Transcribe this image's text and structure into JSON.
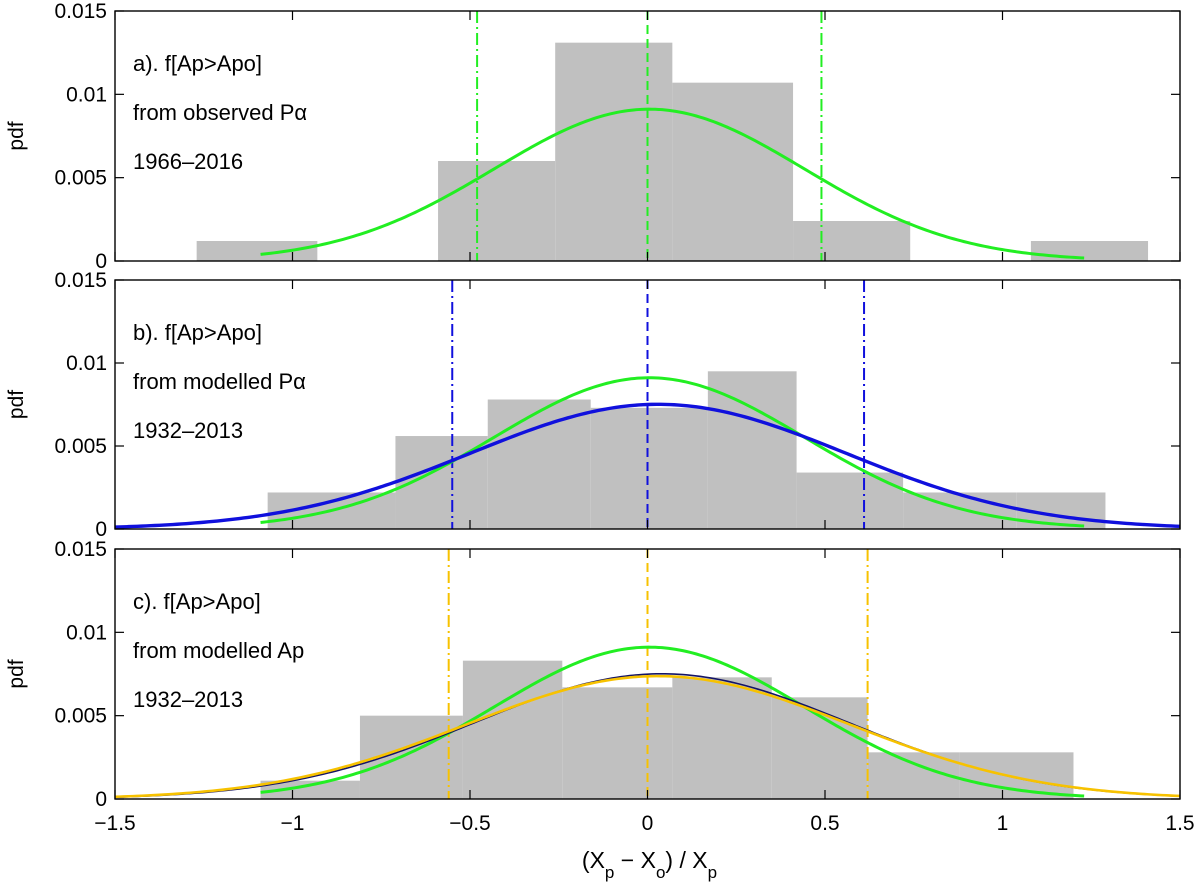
{
  "chart_data": {
    "type": "histogram+line",
    "xlabel": "(X_p − X_o) / X_p",
    "xlabel_parts": {
      "open": "(X",
      "sub1": "p",
      "minus": " − X",
      "sub2": "o",
      "mid": ") / X",
      "sub3": "p"
    },
    "xlim": [
      -1.5,
      1.5
    ],
    "xticks": [
      -1.5,
      -1,
      -0.5,
      0,
      0.5,
      1,
      1.5
    ],
    "xtick_labels": [
      "−1.5",
      "−1",
      "−0.5",
      "0",
      "0.5",
      "1",
      "1.5"
    ],
    "panels": [
      {
        "id": "a",
        "ylabel": "pdf",
        "ylim": [
          0,
          0.015
        ],
        "yticks": [
          0,
          0.005,
          0.01,
          0.015
        ],
        "ytick_labels": [
          "0",
          "0.005",
          "0.01",
          "0.015"
        ],
        "annotations": [
          "a). f[Ap>Apo]",
          "from observed Pα",
          "1966–2016"
        ],
        "histogram": {
          "edges": [
            -1.27,
            -0.93,
            -0.59,
            -0.26,
            0.07,
            0.41,
            0.74,
            1.08,
            1.41
          ],
          "values": [
            0.0012,
            0.0,
            0.006,
            0.0131,
            0.0107,
            0.0024,
            0.0,
            0.0012
          ]
        },
        "curves": [
          {
            "name": "observed fit",
            "color": "#22ee22",
            "mean": 0.005,
            "sigma": 0.437,
            "x_range": [
              -1.09,
              1.23
            ],
            "width": 3
          }
        ],
        "vlines": [
          {
            "x": -0.48,
            "color": "#22ee22",
            "style": "dashdot"
          },
          {
            "x": 0.0,
            "color": "#22ee22",
            "style": "dashed"
          },
          {
            "x": 0.49,
            "color": "#22ee22",
            "style": "dashdot"
          }
        ]
      },
      {
        "id": "b",
        "ylabel": "pdf",
        "ylim": [
          0,
          0.015
        ],
        "yticks": [
          0,
          0.005,
          0.01,
          0.015
        ],
        "ytick_labels": [
          "0",
          "0.005",
          "0.01",
          "0.015"
        ],
        "annotations": [
          "b). f[Ap>Apo]",
          "from modelled Pα",
          "1932–2013"
        ],
        "histogram": {
          "edges": [
            -1.07,
            -0.71,
            -0.45,
            -0.16,
            0.17,
            0.42,
            0.72,
            1.04,
            1.29
          ],
          "values": [
            0.0022,
            0.0056,
            0.0078,
            0.0073,
            0.0095,
            0.0034,
            0.0022,
            0.0022
          ]
        },
        "curves": [
          {
            "name": "observed fit",
            "color": "#22ee22",
            "mean": 0.005,
            "sigma": 0.437,
            "x_range": [
              -1.09,
              1.23
            ],
            "width": 3
          },
          {
            "name": "modelled Pα fit",
            "color": "#1010dd",
            "mean": 0.03,
            "sigma": 0.53,
            "x_range": [
              -1.5,
              1.5
            ],
            "width": 3.4
          }
        ],
        "vlines": [
          {
            "x": -0.55,
            "color": "#1010dd",
            "style": "dashdot"
          },
          {
            "x": 0.0,
            "color": "#1010dd",
            "style": "dashed"
          },
          {
            "x": 0.61,
            "color": "#1010dd",
            "style": "dashdot"
          }
        ]
      },
      {
        "id": "c",
        "ylabel": "pdf",
        "ylim": [
          0,
          0.015
        ],
        "yticks": [
          0,
          0.005,
          0.01,
          0.015
        ],
        "ytick_labels": [
          "0",
          "0.005",
          "0.01",
          "0.015"
        ],
        "annotations": [
          "c). f[Ap>Apo]",
          "from modelled Ap",
          "1932–2013"
        ],
        "histogram": {
          "edges": [
            -1.09,
            -0.81,
            -0.52,
            -0.24,
            0.07,
            0.35,
            0.62,
            0.88,
            1.2
          ],
          "values": [
            0.0011,
            0.005,
            0.0083,
            0.0067,
            0.0073,
            0.0061,
            0.0028,
            0.0028
          ]
        },
        "curves": [
          {
            "name": "observed fit",
            "color": "#22ee22",
            "mean": 0.005,
            "sigma": 0.437,
            "x_range": [
              -1.09,
              1.23
            ],
            "width": 3
          },
          {
            "name": "modelled Pα fit",
            "color": "#141466",
            "mean": 0.04,
            "sigma": 0.53,
            "x_range": [
              -1.5,
              1.5
            ],
            "width": 1.6
          },
          {
            "name": "modelled Ap fit",
            "color": "#f7c200",
            "mean": 0.03,
            "sigma": 0.54,
            "x_range": [
              -1.5,
              1.5
            ],
            "width": 2.6
          }
        ],
        "vlines": [
          {
            "x": -0.56,
            "color": "#f7c200",
            "style": "dashdot"
          },
          {
            "x": 0.0,
            "color": "#f7c200",
            "style": "dashed"
          },
          {
            "x": 0.62,
            "color": "#f7c200",
            "style": "dashdot"
          }
        ]
      }
    ]
  }
}
